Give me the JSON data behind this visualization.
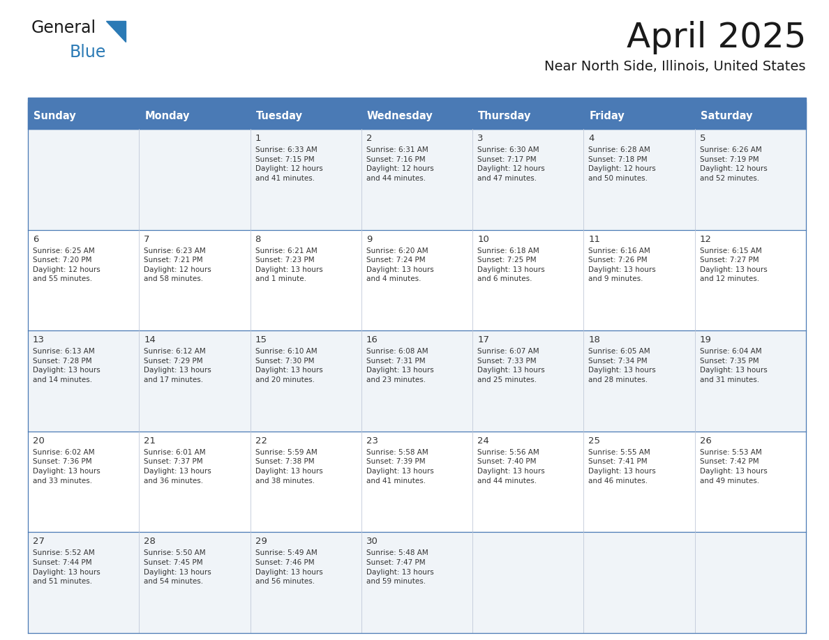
{
  "title": "April 2025",
  "subtitle": "Near North Side, Illinois, United States",
  "days_of_week": [
    "Sunday",
    "Monday",
    "Tuesday",
    "Wednesday",
    "Thursday",
    "Friday",
    "Saturday"
  ],
  "header_bg": "#4a7ab5",
  "header_text": "#ffffff",
  "row_bg_odd": "#f0f4f8",
  "row_bg_even": "#ffffff",
  "cell_text": "#333333",
  "border_color": "#4a7ab5",
  "sep_line_color": "#4a7ab5",
  "logo_general_color": "#1a1a1a",
  "logo_blue_color": "#2b7ab5",
  "logo_triangle_color": "#2b7ab5",
  "calendar": [
    [
      {
        "day": "",
        "info": ""
      },
      {
        "day": "",
        "info": ""
      },
      {
        "day": "1",
        "info": "Sunrise: 6:33 AM\nSunset: 7:15 PM\nDaylight: 12 hours\nand 41 minutes."
      },
      {
        "day": "2",
        "info": "Sunrise: 6:31 AM\nSunset: 7:16 PM\nDaylight: 12 hours\nand 44 minutes."
      },
      {
        "day": "3",
        "info": "Sunrise: 6:30 AM\nSunset: 7:17 PM\nDaylight: 12 hours\nand 47 minutes."
      },
      {
        "day": "4",
        "info": "Sunrise: 6:28 AM\nSunset: 7:18 PM\nDaylight: 12 hours\nand 50 minutes."
      },
      {
        "day": "5",
        "info": "Sunrise: 6:26 AM\nSunset: 7:19 PM\nDaylight: 12 hours\nand 52 minutes."
      }
    ],
    [
      {
        "day": "6",
        "info": "Sunrise: 6:25 AM\nSunset: 7:20 PM\nDaylight: 12 hours\nand 55 minutes."
      },
      {
        "day": "7",
        "info": "Sunrise: 6:23 AM\nSunset: 7:21 PM\nDaylight: 12 hours\nand 58 minutes."
      },
      {
        "day": "8",
        "info": "Sunrise: 6:21 AM\nSunset: 7:23 PM\nDaylight: 13 hours\nand 1 minute."
      },
      {
        "day": "9",
        "info": "Sunrise: 6:20 AM\nSunset: 7:24 PM\nDaylight: 13 hours\nand 4 minutes."
      },
      {
        "day": "10",
        "info": "Sunrise: 6:18 AM\nSunset: 7:25 PM\nDaylight: 13 hours\nand 6 minutes."
      },
      {
        "day": "11",
        "info": "Sunrise: 6:16 AM\nSunset: 7:26 PM\nDaylight: 13 hours\nand 9 minutes."
      },
      {
        "day": "12",
        "info": "Sunrise: 6:15 AM\nSunset: 7:27 PM\nDaylight: 13 hours\nand 12 minutes."
      }
    ],
    [
      {
        "day": "13",
        "info": "Sunrise: 6:13 AM\nSunset: 7:28 PM\nDaylight: 13 hours\nand 14 minutes."
      },
      {
        "day": "14",
        "info": "Sunrise: 6:12 AM\nSunset: 7:29 PM\nDaylight: 13 hours\nand 17 minutes."
      },
      {
        "day": "15",
        "info": "Sunrise: 6:10 AM\nSunset: 7:30 PM\nDaylight: 13 hours\nand 20 minutes."
      },
      {
        "day": "16",
        "info": "Sunrise: 6:08 AM\nSunset: 7:31 PM\nDaylight: 13 hours\nand 23 minutes."
      },
      {
        "day": "17",
        "info": "Sunrise: 6:07 AM\nSunset: 7:33 PM\nDaylight: 13 hours\nand 25 minutes."
      },
      {
        "day": "18",
        "info": "Sunrise: 6:05 AM\nSunset: 7:34 PM\nDaylight: 13 hours\nand 28 minutes."
      },
      {
        "day": "19",
        "info": "Sunrise: 6:04 AM\nSunset: 7:35 PM\nDaylight: 13 hours\nand 31 minutes."
      }
    ],
    [
      {
        "day": "20",
        "info": "Sunrise: 6:02 AM\nSunset: 7:36 PM\nDaylight: 13 hours\nand 33 minutes."
      },
      {
        "day": "21",
        "info": "Sunrise: 6:01 AM\nSunset: 7:37 PM\nDaylight: 13 hours\nand 36 minutes."
      },
      {
        "day": "22",
        "info": "Sunrise: 5:59 AM\nSunset: 7:38 PM\nDaylight: 13 hours\nand 38 minutes."
      },
      {
        "day": "23",
        "info": "Sunrise: 5:58 AM\nSunset: 7:39 PM\nDaylight: 13 hours\nand 41 minutes."
      },
      {
        "day": "24",
        "info": "Sunrise: 5:56 AM\nSunset: 7:40 PM\nDaylight: 13 hours\nand 44 minutes."
      },
      {
        "day": "25",
        "info": "Sunrise: 5:55 AM\nSunset: 7:41 PM\nDaylight: 13 hours\nand 46 minutes."
      },
      {
        "day": "26",
        "info": "Sunrise: 5:53 AM\nSunset: 7:42 PM\nDaylight: 13 hours\nand 49 minutes."
      }
    ],
    [
      {
        "day": "27",
        "info": "Sunrise: 5:52 AM\nSunset: 7:44 PM\nDaylight: 13 hours\nand 51 minutes."
      },
      {
        "day": "28",
        "info": "Sunrise: 5:50 AM\nSunset: 7:45 PM\nDaylight: 13 hours\nand 54 minutes."
      },
      {
        "day": "29",
        "info": "Sunrise: 5:49 AM\nSunset: 7:46 PM\nDaylight: 13 hours\nand 56 minutes."
      },
      {
        "day": "30",
        "info": "Sunrise: 5:48 AM\nSunset: 7:47 PM\nDaylight: 13 hours\nand 59 minutes."
      },
      {
        "day": "",
        "info": ""
      },
      {
        "day": "",
        "info": ""
      },
      {
        "day": "",
        "info": ""
      }
    ]
  ]
}
